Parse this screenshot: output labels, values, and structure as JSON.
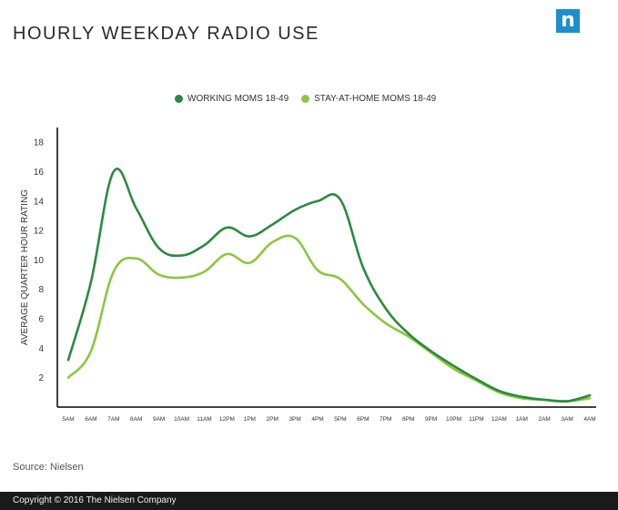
{
  "header": {
    "title": "HOURLY WEEKDAY RADIO USE",
    "logo_letter": "n"
  },
  "legend": [
    {
      "label": "WORKING MOMS 18-49",
      "color": "#2b8a3e"
    },
    {
      "label": "STAY-AT-HOME MOMS 18-49",
      "color": "#8cc63f"
    }
  ],
  "source": "Source: Nielsen",
  "footer": "Copyright © 2016 The Nielsen Company",
  "chart_data": {
    "type": "line",
    "title": "HOURLY WEEKDAY RADIO USE",
    "ylabel": "AVERAGE QUARTER HOUR RATING",
    "xlabel": "",
    "ylim": [
      0,
      19
    ],
    "yticks": [
      2,
      4,
      6,
      8,
      10,
      12,
      14,
      16,
      18
    ],
    "legend_position": "top-center",
    "grid": false,
    "categories": [
      "5AM",
      "6AM",
      "7AM",
      "8AM",
      "9AM",
      "10AM",
      "11AM",
      "12PM",
      "1PM",
      "2PM",
      "3PM",
      "4PM",
      "5PM",
      "6PM",
      "7PM",
      "8PM",
      "9PM",
      "10PM",
      "11PM",
      "12AM",
      "1AM",
      "2AM",
      "3AM",
      "4AM"
    ],
    "series": [
      {
        "name": "WORKING MOMS 18-49",
        "color": "#2b8a3e",
        "values": [
          3.2,
          8.5,
          16.0,
          13.5,
          10.8,
          10.3,
          11.0,
          12.2,
          11.6,
          12.4,
          13.4,
          14.0,
          14.1,
          9.5,
          6.7,
          5.0,
          3.8,
          2.8,
          1.9,
          1.1,
          0.7,
          0.5,
          0.4,
          0.8
        ]
      },
      {
        "name": "STAY-AT-HOME MOMS 18-49",
        "color": "#8cc63f",
        "values": [
          2.0,
          3.8,
          9.2,
          10.1,
          9.0,
          8.8,
          9.2,
          10.4,
          9.8,
          11.2,
          11.5,
          9.3,
          8.7,
          7.0,
          5.7,
          4.8,
          3.7,
          2.6,
          1.8,
          1.0,
          0.6,
          0.5,
          0.4,
          0.6
        ]
      }
    ]
  }
}
